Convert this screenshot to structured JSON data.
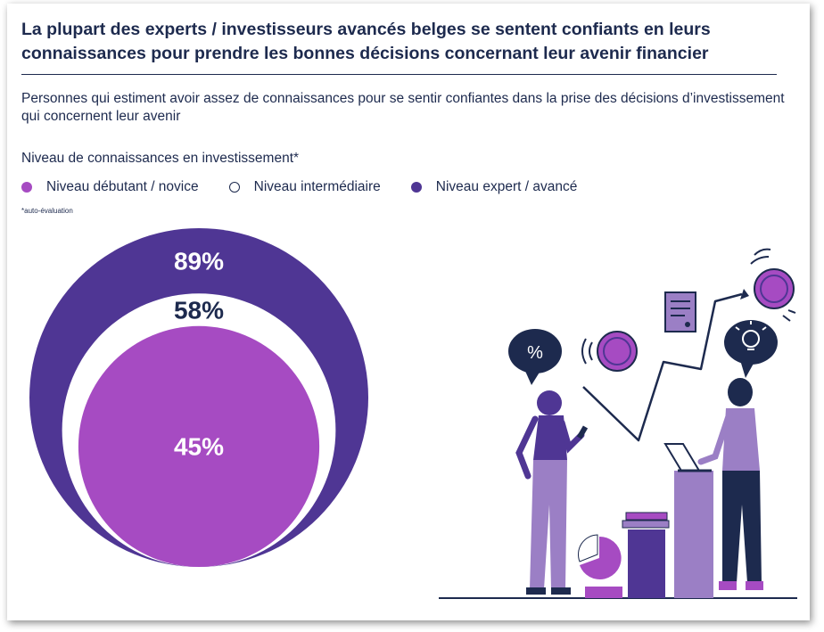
{
  "title": "La plupart des experts / investisseurs avancés belges se sentent confiants en leurs connaissances pour prendre les bonnes décisions concernant leur avenir financier",
  "subtitle": "Personnes qui estiment avoir assez de connaissances pour se sentir confiantes dans la prise des décisions d’investissement qui concernent leur avenir",
  "legend_title": "Niveau de connaissances en investissement*",
  "footnote": "*auto-évaluation",
  "chart_data": {
    "type": "nested-circles",
    "unit": "%",
    "series": [
      {
        "name": "Niveau expert / avancé",
        "value": 89,
        "label": "89%",
        "color": "#4f3694"
      },
      {
        "name": "Niveau intermédiaire",
        "value": 58,
        "label": "58%",
        "color": "#ffffff"
      },
      {
        "name": "Niveau débutant / novice",
        "value": 45,
        "label": "45%",
        "color": "#a64bc2"
      }
    ],
    "legend_order": [
      "Niveau débutant / novice",
      "Niveau intermédiaire",
      "Niveau expert / avancé"
    ],
    "legend_placement": "top-left"
  },
  "illustration": {
    "speech_bubble_symbol": "%",
    "icons": [
      "percent-speech-bubble-icon",
      "document-icon",
      "lightbulb-idea-icon",
      "coin-icon",
      "pie-chart-icon",
      "laptop-icon",
      "phone-icon",
      "growth-arrow-icon"
    ],
    "colors": {
      "navy": "#1d2a4e",
      "violet": "#4f3694",
      "purple": "#a64bc2",
      "lavender": "#9b7fc5"
    }
  }
}
